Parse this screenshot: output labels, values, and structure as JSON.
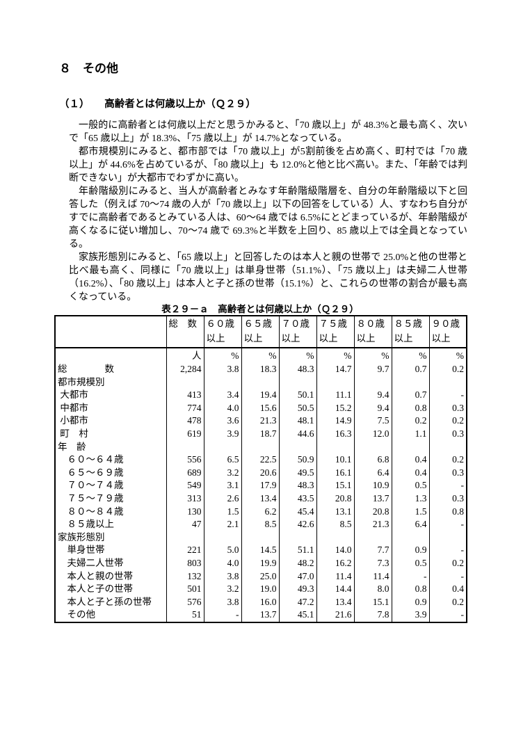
{
  "page": {
    "section_heading": "８　その他",
    "subsection_heading": "（１）　　高齢者とは何歳以上か（Ｑ２９）",
    "paragraphs": [
      "一般的に高齢者とは何歳以上だと思うかみると、「70 歳以上」が 48.3%と最も高く、次いで「65 歳以上」が 18.3%、「75 歳以上」が 14.7%となっている。",
      "都市規模別にみると、都市部では「70 歳以上」が5割前後を占め高く、町村では「70 歳以上」が 44.6%を占めているが、「80 歳以上」も 12.0%と他と比べ高い。また、「年齢では判断できない」が大都市でわずかに高い。",
      "年齢階級別にみると、当人が高齢者とみなす年齢階級階層を、自分の年齢階級以下と回答した（例えば 70〜74 歳の人が「70 歳以上」以下の回答をしている）人、すなわち自分がすでに高齢者であるとみている人は、60〜64 歳では 6.5%にとどまっているが、年齢階級が高くなるに従い増加し、70〜74 歳で 69.3%と半数を上回り、85 歳以上では全員となっている。",
      "家族形態別にみると、「65 歳以上」と回答したのは本人と親の世帯で 25.0%と他の世帯と比べ最も高く、同様に「70 歳以上」は単身世帯（51.1%）、「75 歳以上」は夫婦二人世帯（16.2%）、「80 歳以上」は本人と子と孫の世帯（15.1%）と、これらの世帯の割合が最も高くなっている。"
    ]
  },
  "table": {
    "title": "表２９－ａ　高齢者とは何歳以上か（Ｑ２９）",
    "column_headers": [
      "",
      "総　数",
      "６０歳\n以上",
      "６５歳\n以上",
      "７０歳\n以上",
      "７５歳\n以上",
      "８０歳\n以上",
      "８５歳\n以上",
      "９０歳\n以上"
    ],
    "unit_row": [
      "",
      "人",
      "%",
      "%",
      "%",
      "%",
      "%",
      "%",
      "%"
    ],
    "rows": [
      {
        "label": "総　　　　数",
        "group": false,
        "values": [
          "2,284",
          "3.8",
          "18.3",
          "48.3",
          "14.7",
          "9.7",
          "0.7",
          "0.2"
        ]
      },
      {
        "label": "都市規模別",
        "group": true,
        "values": []
      },
      {
        "label": " 大都市",
        "group": false,
        "values": [
          "413",
          "3.4",
          "19.4",
          "50.1",
          "11.1",
          "9.4",
          "0.7",
          "-"
        ]
      },
      {
        "label": " 中都市",
        "group": false,
        "values": [
          "774",
          "4.0",
          "15.6",
          "50.5",
          "15.2",
          "9.4",
          "0.8",
          "0.3"
        ]
      },
      {
        "label": " 小都市",
        "group": false,
        "values": [
          "478",
          "3.6",
          "21.3",
          "48.1",
          "14.9",
          "7.5",
          "0.2",
          "0.2"
        ]
      },
      {
        "label": " 町　村",
        "group": false,
        "values": [
          "619",
          "3.9",
          "18.7",
          "44.6",
          "16.3",
          "12.0",
          "1.1",
          "0.3"
        ]
      },
      {
        "label": "年　齢",
        "group": true,
        "values": []
      },
      {
        "label": "　６０〜６４歳",
        "group": false,
        "values": [
          "556",
          "6.5",
          "22.5",
          "50.9",
          "10.1",
          "6.8",
          "0.4",
          "0.2"
        ]
      },
      {
        "label": "　６５〜６９歳",
        "group": false,
        "values": [
          "689",
          "3.2",
          "20.6",
          "49.5",
          "16.1",
          "6.4",
          "0.4",
          "0.3"
        ]
      },
      {
        "label": "　７０〜７４歳",
        "group": false,
        "values": [
          "549",
          "3.1",
          "17.9",
          "48.3",
          "15.1",
          "10.9",
          "0.5",
          "-"
        ]
      },
      {
        "label": "　７５〜７９歳",
        "group": false,
        "values": [
          "313",
          "2.6",
          "13.4",
          "43.5",
          "20.8",
          "13.7",
          "1.3",
          "0.3"
        ]
      },
      {
        "label": "　８０〜８４歳",
        "group": false,
        "values": [
          "130",
          "1.5",
          "6.2",
          "45.4",
          "13.1",
          "20.8",
          "1.5",
          "0.8"
        ]
      },
      {
        "label": "　８５歳以上",
        "group": false,
        "values": [
          "47",
          "2.1",
          "8.5",
          "42.6",
          "8.5",
          "21.3",
          "6.4",
          "-"
        ]
      },
      {
        "label": "家族形態別",
        "group": true,
        "values": []
      },
      {
        "label": "　単身世帯",
        "group": false,
        "values": [
          "221",
          "5.0",
          "14.5",
          "51.1",
          "14.0",
          "7.7",
          "0.9",
          "-"
        ]
      },
      {
        "label": "　夫婦二人世帯",
        "group": false,
        "values": [
          "803",
          "4.0",
          "19.9",
          "48.2",
          "16.2",
          "7.3",
          "0.5",
          "0.2"
        ]
      },
      {
        "label": "　本人と親の世帯",
        "group": false,
        "values": [
          "132",
          "3.8",
          "25.0",
          "47.0",
          "11.4",
          "11.4",
          "-",
          "-"
        ]
      },
      {
        "label": "　本人と子の世帯",
        "group": false,
        "values": [
          "501",
          "3.2",
          "19.0",
          "49.3",
          "14.4",
          "8.0",
          "0.8",
          "0.4"
        ]
      },
      {
        "label": "　本人と子と孫の世帯",
        "group": false,
        "values": [
          "576",
          "3.8",
          "16.0",
          "47.2",
          "13.4",
          "15.1",
          "0.9",
          "0.2"
        ]
      },
      {
        "label": "　その他",
        "group": false,
        "values": [
          "51",
          "-",
          "13.7",
          "45.1",
          "21.6",
          "7.8",
          "3.9",
          "-"
        ]
      }
    ],
    "layout": {
      "label_col_width": 160,
      "data_col_width": 54
    }
  }
}
